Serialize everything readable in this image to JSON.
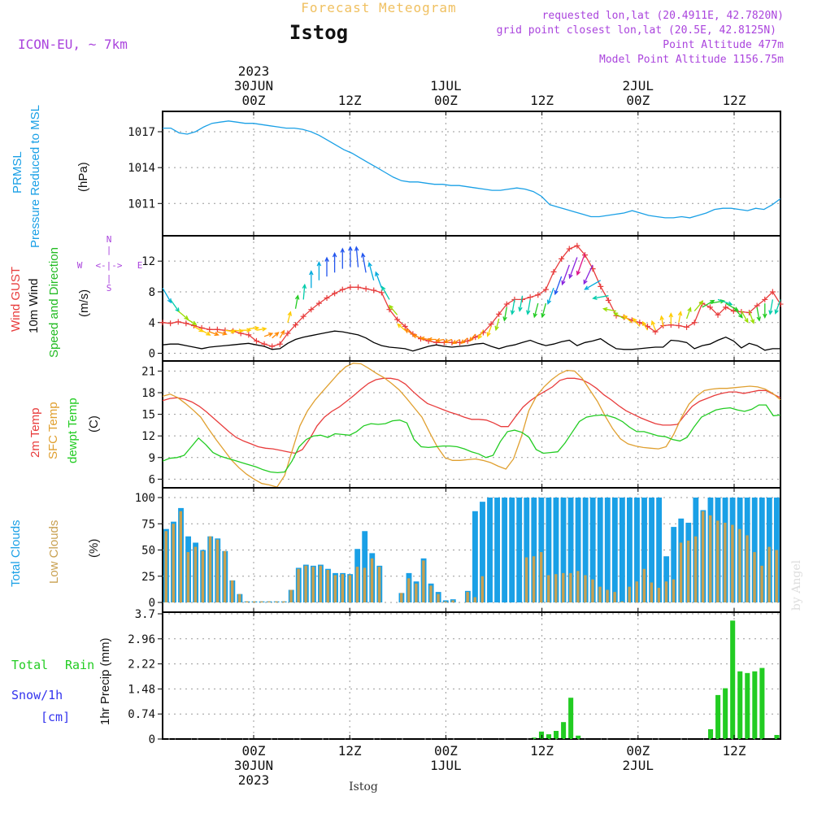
{
  "header": {
    "app_title": "Forecast Meteogram",
    "location": "Istog",
    "model": "ICON-EU, ~ 7km",
    "requested": "requested lon,lat (20.4911E, 42.7820N)",
    "gridpoint": "grid point closest lon,lat (20.5E, 42.8125N)",
    "point_alt": "Point Altitude 477m",
    "model_alt": "Model Point Altitude 1156.75m",
    "credit": "by Angel",
    "footer_location": "Istog"
  },
  "colors": {
    "pressure": "#1aa0e6",
    "gust": "#e83c3c",
    "wind": "#000000",
    "dir": "#22bb22",
    "t2m": "#e83c3c",
    "tsfc": "#e0a030",
    "dewpt": "#22cc22",
    "total_clouds": "#1aa0e6",
    "low_clouds": "#c8a050",
    "rain": "#22cc22",
    "snow": "#3333ee",
    "header": "#aa44dd",
    "app_title": "#f0c060"
  },
  "labels": {
    "pressure": [
      "PRMSL",
      "Pressure Reduced to MSL"
    ],
    "pressure_unit": "(hPa)",
    "gust": "Wind GUST",
    "wind": "10m Wind",
    "dir": "Speed and Direction",
    "wind_unit": "(m/s)",
    "compass": {
      "n": "N",
      "s": "S",
      "w": "W",
      "e": "E",
      "arrows": "<-|->",
      "upper": "|",
      "lower": "|"
    },
    "t2m": "2m Temp",
    "tsfc": "SFC Temp",
    "dewpt": "dewpt Temp",
    "temp_unit": "(C)",
    "total_clouds": "Total Clouds",
    "low_clouds": "Low Clouds",
    "cloud_unit": "(%)",
    "rain_total": "Total",
    "rain_word": "Rain",
    "snow": "Snow/1h",
    "snow_unit": "[cm]",
    "precip": "1hr Precip (mm)"
  },
  "time_axis": {
    "start": "29JUN 15Z",
    "step_hours": 1,
    "n_hours": 64,
    "ticks_top": [
      {
        "hour": 9,
        "lines": [
          "2023",
          "30JUN",
          "00Z"
        ]
      },
      {
        "hour": 21,
        "lines": [
          "12Z"
        ]
      },
      {
        "hour": 33,
        "lines": [
          "1JUL",
          "00Z"
        ]
      },
      {
        "hour": 45,
        "lines": [
          "12Z"
        ]
      },
      {
        "hour": 57,
        "lines": [
          "2JUL",
          "00Z"
        ]
      },
      {
        "hour": 69,
        "lines": [
          "12Z"
        ]
      }
    ],
    "ticks_bottom": [
      {
        "hour": 9,
        "lines": [
          "00Z",
          "30JUN",
          "2023"
        ]
      },
      {
        "hour": 21,
        "lines": [
          "12Z"
        ]
      },
      {
        "hour": 33,
        "lines": [
          "00Z",
          "1JUL"
        ]
      },
      {
        "hour": 45,
        "lines": [
          "12Z"
        ]
      },
      {
        "hour": 57,
        "lines": [
          "00Z",
          "2JUL"
        ]
      },
      {
        "hour": 69,
        "lines": [
          "12Z"
        ]
      }
    ]
  },
  "chart_data": [
    {
      "type": "line",
      "name": "pressure",
      "ylim": [
        1008.3,
        1018.7
      ],
      "yticks": [
        "1011",
        "1014",
        "1017"
      ],
      "series": [
        {
          "name": "PRMSL",
          "values": [
            1017.3,
            1017.3,
            1016.9,
            1016.8,
            1017.0,
            1017.4,
            1017.7,
            1017.8,
            1017.9,
            1017.8,
            1017.7,
            1017.7,
            1017.6,
            1017.5,
            1017.4,
            1017.3,
            1017.3,
            1017.2,
            1017.0,
            1016.7,
            1016.3,
            1015.9,
            1015.5,
            1015.2,
            1014.8,
            1014.4,
            1014.0,
            1013.6,
            1013.2,
            1012.9,
            1012.8,
            1012.8,
            1012.7,
            1012.6,
            1012.6,
            1012.5,
            1012.5,
            1012.4,
            1012.3,
            1012.2,
            1012.1,
            1012.1,
            1012.2,
            1012.3,
            1012.2,
            1012.0,
            1011.6,
            1010.9,
            1010.7,
            1010.5,
            1010.3,
            1010.1,
            1009.9,
            1009.9,
            1010.0,
            1010.1,
            1010.2,
            1010.4,
            1010.2,
            1010.0,
            1009.9,
            1009.8,
            1009.8,
            1009.9,
            1009.8,
            1010.0,
            1010.2,
            1010.5,
            1010.6,
            1010.6,
            1010.5,
            1010.4,
            1010.6,
            1010.5,
            1010.9,
            1011.4
          ]
        }
      ]
    },
    {
      "type": "line",
      "name": "wind",
      "ylim": [
        -1,
        15.3
      ],
      "yticks": [
        "0",
        "4",
        "8",
        "12"
      ],
      "series": [
        {
          "name": "Wind GUST",
          "values": [
            4.0,
            3.9,
            4.1,
            3.9,
            3.6,
            3.3,
            3.1,
            3.1,
            3.0,
            2.9,
            2.6,
            2.4,
            1.6,
            1.2,
            0.9,
            1.2,
            2.6,
            3.7,
            4.8,
            5.7,
            6.5,
            7.2,
            7.8,
            8.3,
            8.6,
            8.6,
            8.4,
            8.2,
            7.9,
            5.7,
            4.4,
            3.5,
            2.5,
            1.9,
            1.6,
            1.4,
            1.4,
            1.4,
            1.4,
            1.6,
            2.1,
            2.7,
            3.8,
            5.1,
            6.4,
            7.0,
            7.0,
            7.3,
            7.6,
            8.3,
            10.6,
            12.3,
            13.6,
            14.0,
            12.8,
            11.0,
            8.7,
            6.9,
            4.9,
            4.7,
            4.3,
            4.0,
            3.5,
            2.8,
            3.6,
            3.7,
            3.6,
            3.4,
            4.0,
            6.5,
            6.0,
            5.0,
            6.0,
            5.5,
            5.4,
            5.3,
            6.2,
            7.0,
            8.0,
            6.4
          ]
        },
        {
          "name": "10m Wind",
          "values": [
            1.1,
            1.2,
            1.2,
            1.0,
            0.8,
            0.6,
            0.8,
            0.9,
            1.0,
            1.1,
            1.2,
            1.3,
            1.1,
            0.9,
            0.5,
            0.6,
            1.3,
            1.8,
            2.1,
            2.3,
            2.5,
            2.7,
            2.9,
            2.8,
            2.6,
            2.4,
            2.0,
            1.4,
            1.0,
            0.8,
            0.7,
            0.6,
            0.3,
            0.6,
            0.9,
            1.1,
            0.9,
            0.8,
            0.9,
            1.0,
            1.2,
            1.3,
            0.9,
            0.6,
            0.9,
            1.1,
            1.4,
            1.7,
            1.3,
            1.0,
            1.2,
            1.5,
            1.7,
            1.0,
            1.4,
            1.6,
            1.9,
            1.2,
            0.6,
            0.5,
            0.5,
            0.6,
            0.7,
            0.8,
            0.8,
            1.7,
            1.6,
            1.4,
            0.6,
            1.0,
            1.2,
            1.7,
            2.1,
            1.6,
            0.7,
            1.3,
            1.0,
            0.4,
            0.6,
            0.6
          ]
        }
      ],
      "direction_speeds": [
        8.5,
        7.0,
        5.5,
        4.5,
        3.5,
        3.0,
        2.8,
        2.8,
        3.0,
        3.0,
        3.0,
        3.2,
        3.0,
        2.2,
        2.0,
        2.0,
        4.0,
        5.8,
        7.0,
        8.5,
        9.5,
        10.0,
        10.5,
        11.0,
        11.2,
        11.2,
        10.5,
        9.5,
        8.5,
        7.0,
        5.0,
        3.0,
        2.5,
        2.0,
        1.8,
        1.8,
        1.8,
        1.8,
        1.8,
        2.0,
        2.5,
        3.0,
        3.5,
        4.5,
        6.0,
        7.0,
        7.5,
        7.0,
        6.5,
        6.5,
        8.5,
        10.0,
        11.5,
        12.5,
        13.0,
        11.5,
        9.5,
        7.5,
        5.5,
        4.5,
        4.0,
        3.5,
        3.0,
        3.0,
        3.5,
        3.8,
        4.0,
        4.5,
        5.5,
        6.0,
        6.5,
        7.0,
        6.5,
        6.0,
        5.5,
        5.5,
        6.0,
        6.5,
        7.0,
        7.0
      ],
      "direction_deg": [
        330,
        325,
        310,
        300,
        300,
        300,
        290,
        285,
        280,
        275,
        270,
        265,
        260,
        250,
        230,
        210,
        195,
        190,
        185,
        180,
        180,
        180,
        180,
        180,
        180,
        175,
        170,
        165,
        160,
        150,
        140,
        130,
        120,
        110,
        100,
        90,
        80,
        70,
        60,
        50,
        40,
        30,
        20,
        15,
        10,
        10,
        10,
        10,
        15,
        15,
        20,
        20,
        20,
        20,
        20,
        25,
        60,
        80,
        100,
        120,
        130,
        140,
        150,
        160,
        170,
        180,
        190,
        200,
        220,
        240,
        260,
        290,
        300,
        320,
        330,
        340,
        350,
        0,
        10,
        20
      ]
    },
    {
      "type": "line",
      "name": "temperature",
      "ylim": [
        4.8,
        22.4
      ],
      "yticks": [
        "6",
        "9",
        "12",
        "15",
        "18",
        "21"
      ],
      "series": [
        {
          "name": "2m Temp",
          "values": [
            16.9,
            17.2,
            17.3,
            17.1,
            16.7,
            16.1,
            15.3,
            14.4,
            13.5,
            12.6,
            11.8,
            11.3,
            10.9,
            10.5,
            10.3,
            10.2,
            10.0,
            9.8,
            9.6,
            10.1,
            11.6,
            13.4,
            14.6,
            15.4,
            16.0,
            16.8,
            17.6,
            18.5,
            19.3,
            19.8,
            20.0,
            20.0,
            19.8,
            19.2,
            18.2,
            17.3,
            16.5,
            16.1,
            15.7,
            15.3,
            15.0,
            14.6,
            14.3,
            14.3,
            14.2,
            13.8,
            13.3,
            13.3,
            14.7,
            16.0,
            16.9,
            17.6,
            18.2,
            18.8,
            19.7,
            20.0,
            20.0,
            19.8,
            19.3,
            18.6,
            17.7,
            17.0,
            16.2,
            15.5,
            15.0,
            14.5,
            14.1,
            13.7,
            13.5,
            13.5,
            13.6,
            14.9,
            16.1,
            16.8,
            17.2,
            17.6,
            17.9,
            18.1,
            18.1,
            17.9,
            18.1,
            18.3,
            18.3,
            17.8,
            17.3
          ]
        },
        {
          "name": "SFC Temp",
          "values": [
            17.5,
            17.8,
            17.3,
            16.5,
            15.6,
            14.6,
            13.0,
            11.5,
            10.1,
            8.7,
            7.6,
            6.7,
            6.0,
            5.4,
            5.2,
            4.9,
            6.5,
            10.0,
            13.4,
            15.5,
            17.0,
            18.2,
            19.4,
            20.6,
            21.6,
            22.1,
            22.0,
            21.4,
            20.7,
            20.1,
            19.3,
            18.4,
            17.2,
            15.9,
            14.6,
            12.5,
            10.5,
            9.0,
            8.6,
            8.6,
            8.7,
            8.8,
            8.6,
            8.3,
            7.8,
            7.4,
            8.8,
            11.8,
            15.5,
            17.5,
            18.8,
            19.8,
            20.6,
            21.1,
            21.0,
            20.0,
            18.4,
            16.8,
            14.8,
            13.0,
            11.6,
            10.9,
            10.6,
            10.4,
            10.3,
            10.2,
            10.5,
            12.2,
            14.5,
            16.4,
            17.5,
            18.3,
            18.5,
            18.6,
            18.6,
            18.7,
            18.8,
            18.9,
            18.8,
            18.5,
            17.9,
            17.0
          ]
        },
        {
          "name": "dewpt Temp",
          "values": [
            8.5,
            8.9,
            9.0,
            9.3,
            10.5,
            11.7,
            10.8,
            9.7,
            9.2,
            8.9,
            8.6,
            8.3,
            8.0,
            7.7,
            7.3,
            7.0,
            6.9,
            7.0,
            8.5,
            10.5,
            11.5,
            12.0,
            12.1,
            11.8,
            12.3,
            12.2,
            12.1,
            12.6,
            13.4,
            13.7,
            13.6,
            13.7,
            14.1,
            14.2,
            13.8,
            11.5,
            10.5,
            10.4,
            10.5,
            10.6,
            10.6,
            10.5,
            10.2,
            9.8,
            9.5,
            9.0,
            9.3,
            11.2,
            12.6,
            12.8,
            12.5,
            11.8,
            10.1,
            9.6,
            9.7,
            9.8,
            11.0,
            12.5,
            14.0,
            14.6,
            14.8,
            14.9,
            14.8,
            14.5,
            14.0,
            13.2,
            12.6,
            12.6,
            12.3,
            12.0,
            11.9,
            11.5,
            11.3,
            11.8,
            13.3,
            14.6,
            15.1,
            15.6,
            15.8,
            15.9,
            15.6,
            15.4,
            15.7,
            16.3,
            16.3,
            14.8,
            14.9
          ]
        }
      ]
    },
    {
      "type": "bar",
      "name": "clouds",
      "ylim": [
        0,
        100
      ],
      "yticks": [
        "0",
        "25",
        "50",
        "75",
        "100"
      ],
      "series": [
        {
          "name": "Total Clouds",
          "values": [
            70,
            77,
            90,
            63,
            57,
            50,
            63,
            61,
            49,
            21,
            8,
            1,
            1,
            1,
            1,
            1,
            1,
            12,
            33,
            36,
            35,
            36,
            32,
            28,
            28,
            27,
            51,
            68,
            47,
            35,
            0,
            0,
            9,
            28,
            20,
            42,
            18,
            10,
            2,
            3,
            0,
            11,
            87,
            96,
            100,
            100,
            100,
            100,
            100,
            100,
            100,
            100,
            100,
            100,
            100,
            100,
            100,
            100,
            100,
            100,
            100,
            100,
            100,
            100,
            100,
            100,
            100,
            100,
            44,
            72,
            80,
            76,
            100,
            88,
            100,
            100,
            100,
            100,
            100,
            100,
            100,
            100,
            100,
            100
          ]
        },
        {
          "name": "Low Clouds",
          "values": [
            68,
            75,
            87,
            48,
            53,
            49,
            63,
            60,
            49,
            21,
            8,
            1,
            1,
            1,
            1,
            1,
            1,
            12,
            32,
            35,
            34,
            35,
            31,
            26,
            27,
            26,
            34,
            33,
            42,
            34,
            0,
            0,
            9,
            23,
            18,
            40,
            16,
            8,
            1,
            2,
            0,
            10,
            5,
            25,
            0,
            0,
            0,
            0,
            0,
            43,
            44,
            48,
            26,
            27,
            28,
            28,
            30,
            26,
            22,
            15,
            12,
            10,
            1,
            15,
            20,
            32,
            19,
            14,
            20,
            22,
            57,
            59,
            63,
            87,
            83,
            78,
            76,
            74,
            70,
            64,
            48,
            35,
            53,
            50
          ]
        }
      ]
    },
    {
      "type": "bar",
      "name": "precipitation",
      "ylim": [
        0,
        3.7
      ],
      "yticks": [
        "0",
        "0.74",
        "1.48",
        "2.22",
        "2.96",
        "3.7"
      ],
      "series": [
        {
          "name": "Total Rain",
          "values": [
            0,
            0,
            0,
            0,
            0,
            0,
            0,
            0,
            0,
            0,
            0,
            0,
            0,
            0,
            0,
            0,
            0,
            0,
            0,
            0,
            0,
            0,
            0,
            0,
            0,
            0,
            0,
            0,
            0,
            0,
            0,
            0,
            0,
            0,
            0,
            0,
            0,
            0,
            0,
            0,
            0,
            0,
            0,
            0,
            0,
            0,
            0,
            0,
            0,
            0,
            0.04,
            0.22,
            0.14,
            0.24,
            0.5,
            1.22,
            0.1,
            0,
            0,
            0,
            0,
            0,
            0,
            0,
            0,
            0,
            0,
            0,
            0,
            0,
            0,
            0,
            0,
            0,
            0.29,
            1.3,
            1.5,
            3.5,
            2.0,
            1.95,
            2.0,
            2.1,
            0,
            0.12
          ]
        },
        {
          "name": "Snow/1h",
          "values": []
        }
      ]
    }
  ]
}
